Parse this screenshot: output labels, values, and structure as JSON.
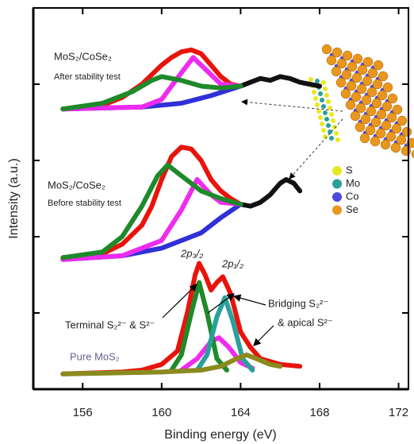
{
  "chart_data": {
    "type": "line",
    "xlabel": "Binding energy (eV)",
    "ylabel": "Intensity (a.u.)",
    "xlim": [
      153.5,
      172.5
    ],
    "xticks": [
      156,
      160,
      164,
      168,
      172
    ],
    "ylim": [
      0,
      100
    ],
    "yticks": [
      20,
      40,
      60,
      80
    ],
    "series": [
      {
        "color": "#e8140c",
        "x": [
          155,
          157,
          158,
          159,
          160,
          160.5,
          161,
          161.5,
          162,
          162.5,
          163,
          163.5,
          164
        ],
        "values": [
          73.5,
          74.5,
          76.5,
          80,
          85,
          87,
          88.5,
          89,
          88,
          85,
          82,
          80,
          79.5
        ]
      },
      {
        "color": "#111111",
        "x": [
          164,
          164.5,
          165,
          165.5,
          166,
          166.5,
          167,
          167.5,
          168
        ],
        "values": [
          79.5,
          80.5,
          81.5,
          81,
          82,
          81.5,
          80.5,
          80,
          79.5
        ]
      },
      {
        "color": "#3030d8",
        "x": [
          155,
          159,
          161,
          162.5,
          164
        ],
        "values": [
          73.5,
          74,
          75,
          77,
          79.5
        ]
      },
      {
        "color": "#ee2bee",
        "x": [
          155,
          159,
          160,
          161,
          161.6,
          162.2,
          163,
          164
        ],
        "values": [
          73.5,
          74,
          76,
          83,
          87,
          84,
          80,
          79.5
        ]
      },
      {
        "color": "#1e8a2a",
        "x": [
          155,
          157,
          158.5,
          159.5,
          160,
          161,
          162,
          163,
          164
        ],
        "values": [
          73.5,
          75,
          78,
          81,
          82,
          81,
          79.5,
          79,
          79.5
        ]
      },
      {
        "color": "#e8140c",
        "x": [
          155,
          157,
          158,
          159,
          159.5,
          160,
          160.5,
          161,
          161.5,
          162,
          162.5,
          163,
          163.5,
          164
        ],
        "values": [
          34.5,
          35.5,
          38,
          43,
          48,
          55,
          61,
          63.5,
          63,
          60,
          55,
          52,
          50,
          48.5
        ]
      },
      {
        "color": "#111111",
        "x": [
          164,
          164.5,
          165,
          165.5,
          166,
          166.3,
          166.7,
          167
        ],
        "values": [
          48.5,
          48,
          49,
          51,
          54,
          55,
          54,
          52
        ]
      },
      {
        "color": "#3030d8",
        "x": [
          155,
          158,
          160,
          162,
          163,
          164
        ],
        "values": [
          34,
          35,
          37,
          41,
          45,
          48.5
        ]
      },
      {
        "color": "#ee2bee",
        "x": [
          155,
          158,
          160,
          161,
          161.8,
          162.5,
          163,
          164
        ],
        "values": [
          34,
          35,
          39,
          47,
          55,
          51,
          49,
          48.5
        ]
      },
      {
        "color": "#1e8a2a",
        "x": [
          155,
          157,
          158,
          159,
          159.8,
          160.3,
          161,
          162,
          163,
          164
        ],
        "values": [
          34.5,
          36,
          40,
          48,
          56,
          58.8,
          56,
          52,
          50,
          48.5
        ]
      },
      {
        "color": "#e8140c",
        "x": [
          155,
          158,
          159,
          160,
          160.8,
          161.3,
          161.7,
          161.9,
          162.2,
          162.5,
          162.8,
          163.1,
          163.5,
          164,
          164.5,
          165,
          166,
          167
        ],
        "values": [
          4,
          4.5,
          5,
          6.5,
          10,
          20,
          30,
          33,
          30,
          26,
          28,
          29.5,
          25,
          15,
          11,
          8,
          6.5,
          6
        ]
      },
      {
        "color": "#ee2bee",
        "x": [
          161,
          161.8,
          162.5,
          162.9,
          163.4,
          164,
          164.6
        ],
        "values": [
          5,
          8,
          12.5,
          13.5,
          11,
          7,
          5.5
        ]
      },
      {
        "color": "#1e8a2a",
        "x": [
          160.5,
          161,
          161.5,
          161.9,
          162.3,
          162.8,
          163.3
        ],
        "values": [
          5,
          9,
          20,
          28,
          20,
          8,
          5
        ]
      },
      {
        "color": "#2aa09a",
        "x": [
          161.8,
          162.3,
          162.8,
          163.2,
          163.6,
          164.1,
          164.6
        ],
        "values": [
          5,
          9,
          19,
          24,
          18,
          8,
          5
        ]
      },
      {
        "color": "#8a8a1e",
        "x": [
          155,
          160,
          162,
          163,
          163.8,
          164.3,
          164.8,
          165.5,
          166
        ],
        "values": [
          4,
          4.5,
          5,
          6,
          8,
          9,
          8,
          6.5,
          6
        ]
      }
    ],
    "annotations": [
      "MoS₂/CoSe₂",
      "After stability test",
      "MoS₂/CoSe₂",
      "Before stability test",
      "Pure MoS₂",
      "2p₃/₂",
      "2p₁/₂",
      "Terminal S₂²⁻ & S²⁻",
      "Bridging S₂²⁻",
      "& apical S²⁻"
    ],
    "atom_legend": [
      {
        "label": "S",
        "color": "#e8e820"
      },
      {
        "label": "Mo",
        "color": "#2aa09a"
      },
      {
        "label": "Co",
        "color": "#4a4ae0"
      },
      {
        "label": "Se",
        "color": "#e8961e"
      }
    ]
  }
}
